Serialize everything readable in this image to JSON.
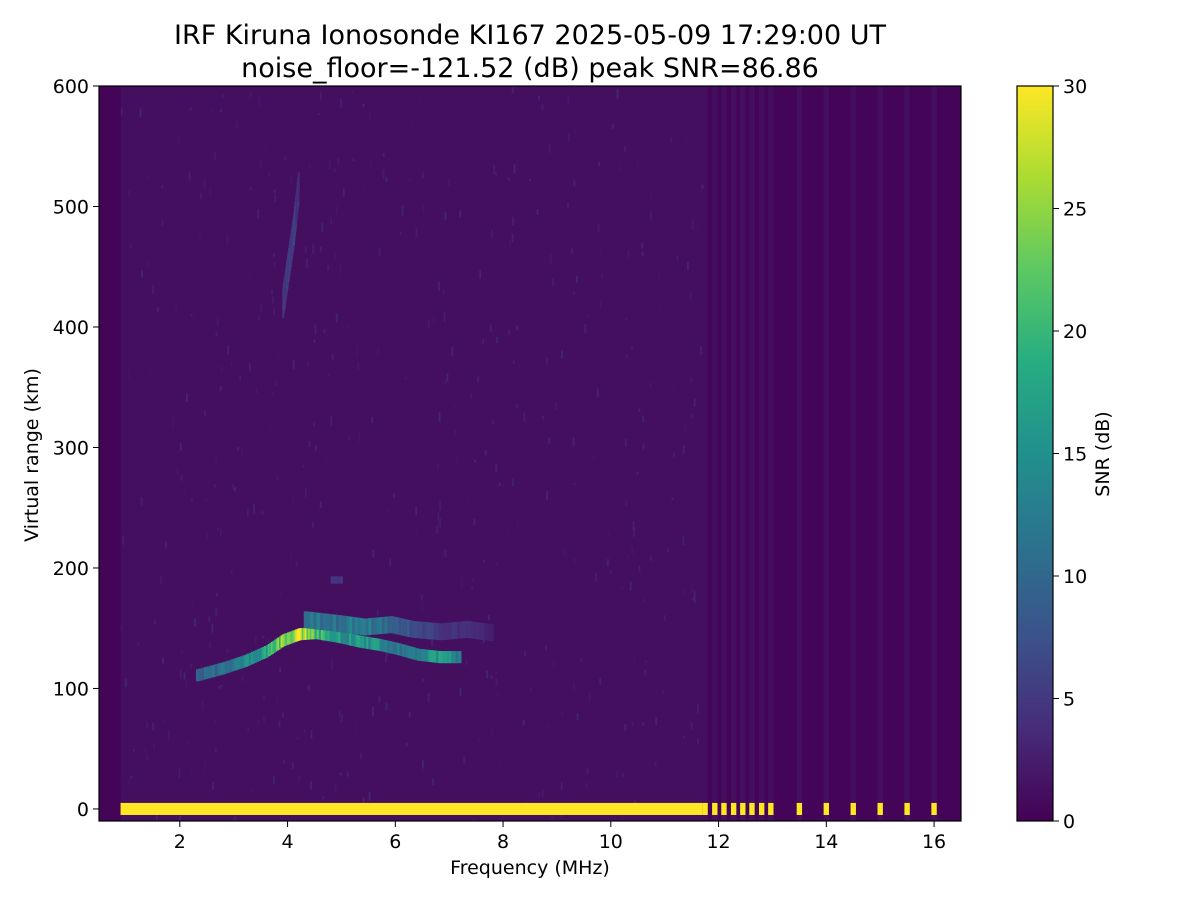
{
  "chart_data": {
    "type": "heatmap",
    "title": "IRF Kiruna Ionosonde KI167 2025-05-09 17:29:00  UT",
    "subtitle": "noise_floor=-121.52 (dB) peak SNR=86.86",
    "xlabel": "Frequency (MHz)",
    "ylabel": "Virtual range (km)",
    "colorbar_label": "SNR (dB)",
    "xlim": [
      0.5,
      16.5
    ],
    "ylim": [
      -10,
      600
    ],
    "clim": [
      0,
      30
    ],
    "colormap": "viridis",
    "x_ticks": [
      2,
      4,
      6,
      8,
      10,
      12,
      14,
      16
    ],
    "x_tick_labels": [
      "2",
      "4",
      "6",
      "8",
      "10",
      "12",
      "14",
      "16"
    ],
    "y_ticks": [
      0,
      100,
      200,
      300,
      400,
      500,
      600
    ],
    "y_tick_labels": [
      "0",
      "100",
      "200",
      "300",
      "400",
      "500",
      "600"
    ],
    "colorbar_ticks": [
      0,
      5,
      10,
      15,
      20,
      25,
      30
    ],
    "colorbar_tick_labels": [
      "0",
      "5",
      "10",
      "15",
      "20",
      "25",
      "30"
    ],
    "sweep": {
      "continuous_freq_range": [
        0.9,
        11.7
      ],
      "discrete_freqs": [
        11.75,
        11.93,
        12.1,
        12.28,
        12.45,
        12.62,
        12.8,
        12.97,
        13.5,
        14.0,
        14.5,
        15.0,
        15.5,
        16.0
      ],
      "discrete_band_step_mhz": 0.1,
      "typical_snr": 1.2
    },
    "ground_echo": {
      "range_km": [
        -5,
        5
      ],
      "freq_range": [
        0.9,
        16.05
      ],
      "snr": 30
    },
    "echo_traces": [
      {
        "freqs": [
          2.3,
          2.8,
          3.2,
          3.6,
          3.9,
          4.2,
          4.5,
          4.9,
          5.3,
          5.7,
          6.0,
          6.4,
          6.8,
          7.2
        ],
        "ranges": [
          111,
          117,
          123,
          131,
          140,
          145,
          146,
          143,
          139,
          136,
          133,
          128,
          126,
          126
        ],
        "snr": [
          9,
          12,
          15,
          19,
          26,
          30,
          22,
          18,
          17,
          16,
          13,
          15,
          17,
          14
        ],
        "thickness_km": 10
      },
      {
        "freqs": [
          4.3,
          4.9,
          5.4,
          5.9,
          6.3,
          6.8,
          7.3,
          7.8
        ],
        "ranges": [
          157,
          154,
          151,
          153,
          149,
          147,
          149,
          146
        ],
        "snr": [
          13,
          12,
          14,
          10,
          8,
          5,
          4,
          3
        ],
        "thickness_km": 14
      },
      {
        "freqs": [
          4.8,
          5.0
        ],
        "ranges": [
          190,
          190
        ],
        "snr": [
          5,
          5
        ],
        "thickness_km": 6
      },
      {
        "freqs": [
          3.9,
          4.0,
          4.1,
          4.2
        ],
        "ranges": [
          420,
          450,
          480,
          520
        ],
        "snr": [
          5,
          6,
          6,
          4
        ],
        "thickness_km": 25
      }
    ]
  }
}
